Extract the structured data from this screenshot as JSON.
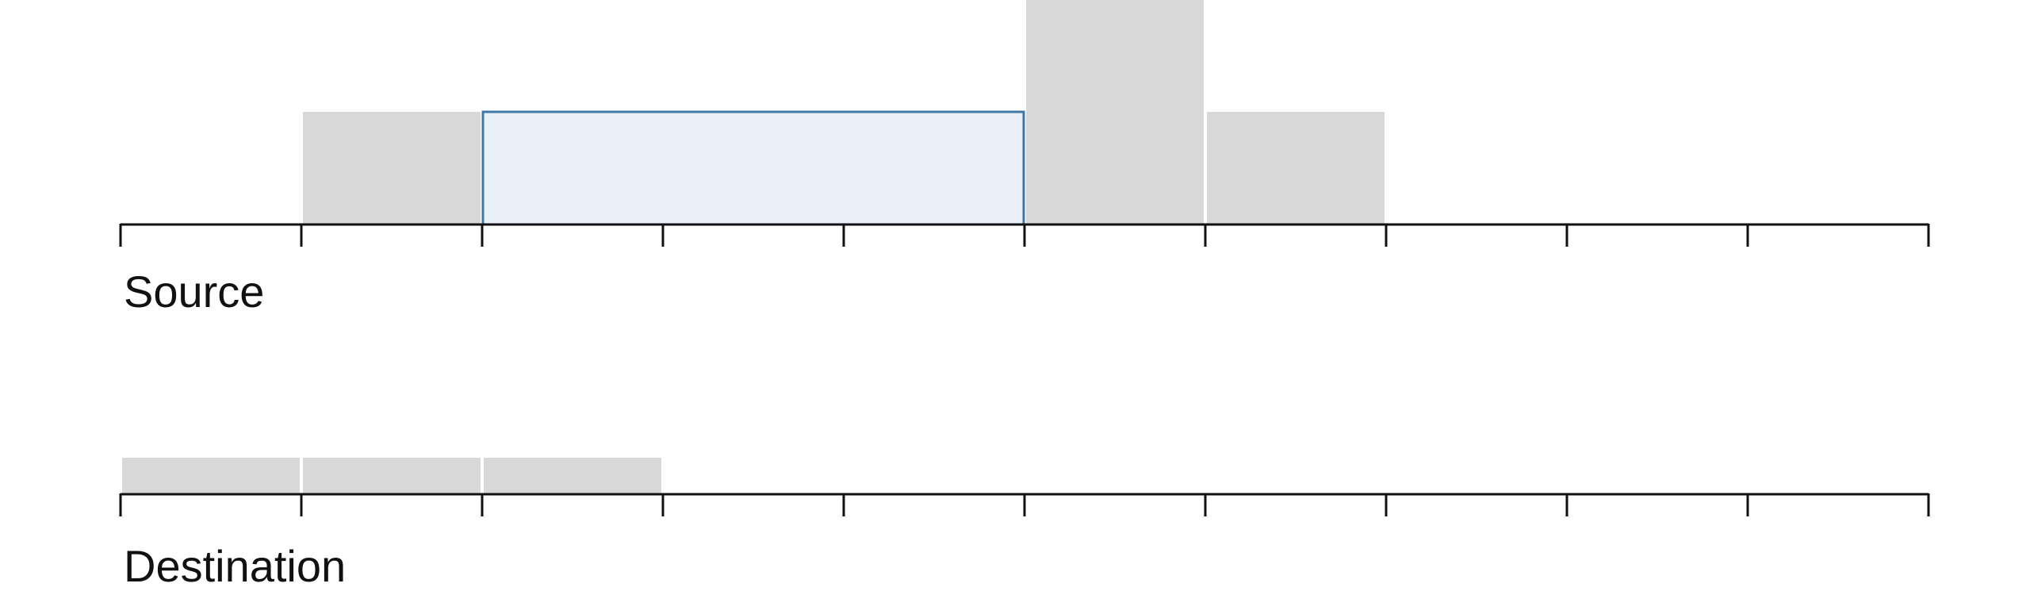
{
  "colors": {
    "block_fill": "#d8d8d8",
    "selection_fill": "#e9f0f7",
    "selection_stroke": "#3e78a8",
    "axis": "#111111",
    "text": "#111111"
  },
  "source": {
    "label": "Source",
    "slot_count": 10,
    "blocks": [
      {
        "start": 1,
        "end": 2,
        "level": 1
      },
      {
        "start": 5,
        "end": 6,
        "level": 2
      },
      {
        "start": 6,
        "end": 7,
        "level": 1
      }
    ],
    "selection": {
      "start": 2,
      "end": 5,
      "level": 1
    }
  },
  "destination": {
    "label": "Destination",
    "slot_count": 10,
    "blocks": [
      {
        "start": 0,
        "end": 1,
        "level": 1
      },
      {
        "start": 1,
        "end": 2,
        "level": 1
      },
      {
        "start": 2,
        "end": 3,
        "level": 1
      }
    ]
  }
}
